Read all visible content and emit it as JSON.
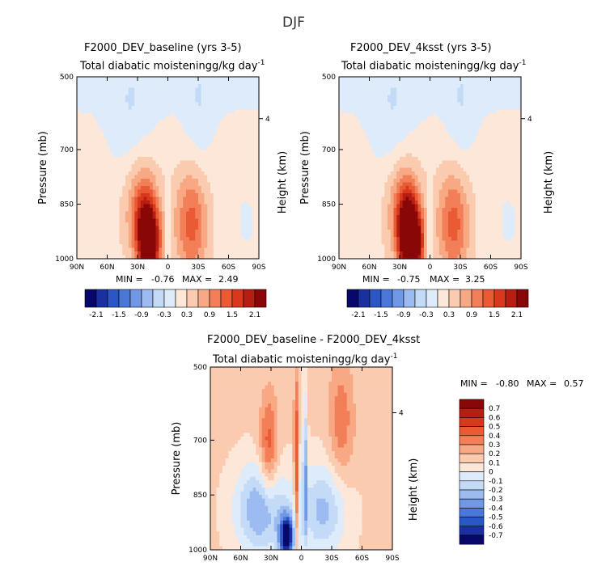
{
  "figure": {
    "season": "DJF"
  },
  "chart_data": [
    {
      "type": "heatmap",
      "panel": "left",
      "title": "F2000_DEV_baseline (yrs 3-5)",
      "subtitle": "Total diabatic moistening",
      "units_main": "g/kg day",
      "units_sup": "-1",
      "ylabel": "Pressure (mb)",
      "ylabel_right": "Height (km)",
      "x_ticks": [
        "90N",
        "60N",
        "30N",
        "0",
        "30S",
        "60S",
        "90S"
      ],
      "xlim": [
        90,
        -90
      ],
      "y_ticks": [
        "500",
        "700",
        "850",
        "1000"
      ],
      "y_tick_values": [
        500,
        700,
        850,
        1000
      ],
      "ylim": [
        500,
        1000
      ],
      "height_ticks": [
        "4"
      ],
      "min_label": "MIN =",
      "min": "-0.76",
      "max_label": "MAX =",
      "max": "2.49",
      "colorbar_labels": [
        "-2.1",
        "-1.5",
        "-0.9",
        "-0.3",
        "0.3",
        "0.9",
        "1.5",
        "2.1"
      ],
      "colorbar_levels": [
        -2.1,
        -1.8,
        -1.5,
        -1.2,
        -0.9,
        -0.6,
        -0.3,
        0,
        0.3,
        0.6,
        0.9,
        1.2,
        1.5,
        1.8,
        2.1
      ],
      "colors": [
        "#08086b",
        "#1a2fa0",
        "#2a56c6",
        "#4a78d8",
        "#6f98e6",
        "#9bbbf1",
        "#c4dbf8",
        "#deebfb",
        "#fde7d8",
        "#fbcbb0",
        "#f8a883",
        "#f27f58",
        "#e95a35",
        "#d8391d",
        "#b51e10",
        "#8a0707"
      ],
      "features": [
        {
          "label": "background",
          "value": -0.15
        },
        {
          "label": "northern-mid-latitude-positive-tower",
          "value": 0.6
        },
        {
          "label": "tropical-peak",
          "value": 2.49
        },
        {
          "label": "southern-lobe",
          "value": 1.2
        },
        {
          "label": "upper-negative-band",
          "value": -0.6
        }
      ]
    },
    {
      "type": "heatmap",
      "panel": "right",
      "title": "F2000_DEV_4ksst (yrs 3-5)",
      "subtitle": "Total diabatic moistening",
      "units_main": "g/kg day",
      "units_sup": "-1",
      "ylabel": "Pressure (mb)",
      "ylabel_right": "Height (km)",
      "x_ticks": [
        "90N",
        "60N",
        "30N",
        "0",
        "30S",
        "60S",
        "90S"
      ],
      "xlim": [
        90,
        -90
      ],
      "y_ticks": [
        "500",
        "700",
        "850",
        "1000"
      ],
      "y_tick_values": [
        500,
        700,
        850,
        1000
      ],
      "ylim": [
        500,
        1000
      ],
      "height_ticks": [
        "4"
      ],
      "min_label": "MIN =",
      "min": "-0.75",
      "max_label": "MAX =",
      "max": "3.25",
      "colorbar_labels": [
        "-2.1",
        "-1.5",
        "-0.9",
        "-0.3",
        "0.3",
        "0.9",
        "1.5",
        "2.1"
      ],
      "colorbar_levels": [
        -2.1,
        -1.8,
        -1.5,
        -1.2,
        -0.9,
        -0.6,
        -0.3,
        0,
        0.3,
        0.6,
        0.9,
        1.2,
        1.5,
        1.8,
        2.1
      ],
      "colors": [
        "#08086b",
        "#1a2fa0",
        "#2a56c6",
        "#4a78d8",
        "#6f98e6",
        "#9bbbf1",
        "#c4dbf8",
        "#deebfb",
        "#fde7d8",
        "#fbcbb0",
        "#f8a883",
        "#f27f58",
        "#e95a35",
        "#d8391d",
        "#b51e10",
        "#8a0707"
      ],
      "features": [
        {
          "label": "background",
          "value": -0.15
        },
        {
          "label": "northern-mid-latitude-positive-tower",
          "value": 0.6
        },
        {
          "label": "tropical-peak",
          "value": 3.25
        },
        {
          "label": "southern-lobe",
          "value": 1.2
        },
        {
          "label": "upper-negative-band",
          "value": -0.6
        }
      ]
    },
    {
      "type": "heatmap",
      "panel": "diff",
      "title": "F2000_DEV_baseline - F2000_DEV_4ksst",
      "subtitle": "Total diabatic moistening",
      "units_main": "g/kg day",
      "units_sup": "-1",
      "ylabel": "Pressure (mb)",
      "ylabel_right": "Height (km)",
      "x_ticks": [
        "90N",
        "60N",
        "30N",
        "0",
        "30S",
        "60S",
        "90S"
      ],
      "xlim": [
        90,
        -90
      ],
      "y_ticks": [
        "500",
        "700",
        "850",
        "1000"
      ],
      "y_tick_values": [
        500,
        700,
        850,
        1000
      ],
      "ylim": [
        500,
        1000
      ],
      "height_ticks": [
        "4"
      ],
      "min_label": "MIN =",
      "min": "-0.80",
      "max_label": "MAX =",
      "max": "0.57",
      "colorbar_labels": [
        "0.7",
        "0.6",
        "0.5",
        "0.4",
        "0.3",
        "0.2",
        "0.1",
        "0",
        "-0.1",
        "-0.2",
        "-0.3",
        "-0.4",
        "-0.5",
        "-0.6",
        "-0.7"
      ],
      "colors": [
        "#8a0707",
        "#b51e10",
        "#d8391d",
        "#e95a35",
        "#f27f58",
        "#f8a883",
        "#fbcbb0",
        "#fde7d8",
        "#deebfb",
        "#c4dbf8",
        "#9bbbf1",
        "#6f98e6",
        "#4a78d8",
        "#2a56c6",
        "#1a2fa0",
        "#08086b"
      ],
      "features": [
        {
          "label": "background",
          "value": 0.1
        },
        {
          "label": "northern-lower-negative",
          "value": -0.4
        },
        {
          "label": "equatorial-strong-negative",
          "value": -0.8
        },
        {
          "label": "equatorial-positive-column",
          "value": 0.57
        }
      ]
    }
  ]
}
